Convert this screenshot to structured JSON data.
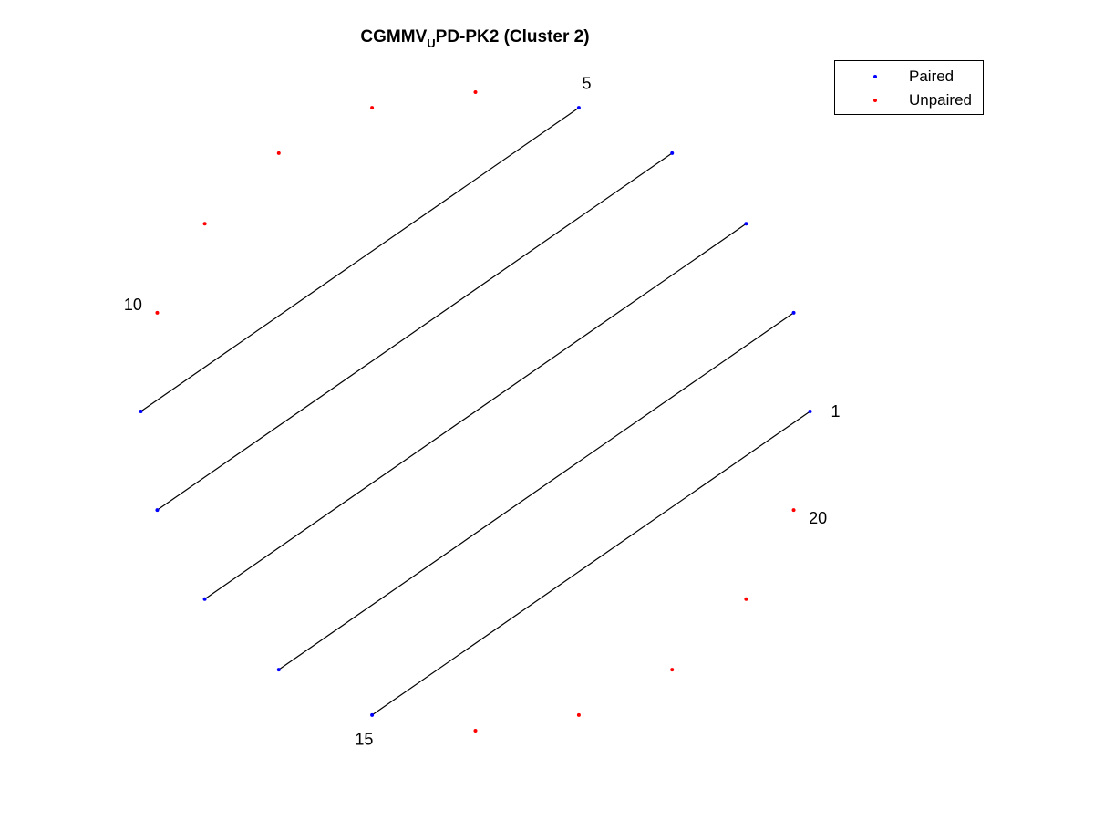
{
  "title": {
    "main": "CGMMV",
    "sub": "U",
    "rest": "PD-PK2 (Cluster 2)"
  },
  "legend": {
    "position": "top-right",
    "items": [
      {
        "label": "Paired",
        "color": "#0000ff"
      },
      {
        "label": "Unpaired",
        "color": "#ff0000"
      }
    ]
  },
  "colors": {
    "paired": "#0000ff",
    "unpaired": "#ff0000",
    "pair_line": "#000000"
  },
  "diagram": {
    "node_count": 20,
    "paired_nodes": [
      1,
      2,
      3,
      4,
      5,
      11,
      12,
      13,
      14,
      15
    ],
    "pairs": [
      [
        1,
        15
      ],
      [
        2,
        14
      ],
      [
        3,
        13
      ],
      [
        4,
        12
      ],
      [
        5,
        11
      ]
    ],
    "labeled_nodes": [
      {
        "node": 1,
        "label": "1"
      },
      {
        "node": 5,
        "label": "5"
      },
      {
        "node": 10,
        "label": "10"
      },
      {
        "node": 15,
        "label": "15"
      },
      {
        "node": 20,
        "label": "20"
      }
    ]
  }
}
